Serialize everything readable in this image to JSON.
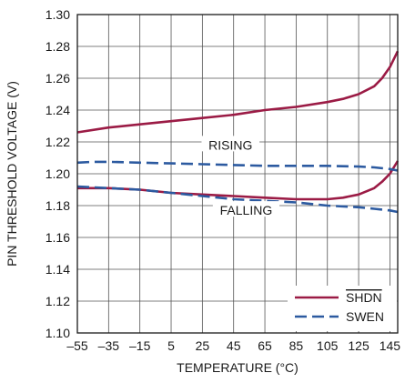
{
  "chart_data": {
    "type": "line",
    "xlabel": "TEMPERATURE (°C)",
    "ylabel": "PIN THRESHOLD VOLTAGE (V)",
    "xlim": [
      -55,
      150
    ],
    "ylim": [
      1.1,
      1.3
    ],
    "xticks": [
      -55,
      -35,
      -15,
      5,
      25,
      45,
      65,
      85,
      105,
      125,
      145
    ],
    "xtick_labels": [
      "–55",
      "–35",
      "–15",
      "5",
      "25",
      "45",
      "65",
      "85",
      "105",
      "125",
      "145"
    ],
    "yticks": [
      1.1,
      1.12,
      1.14,
      1.16,
      1.18,
      1.2,
      1.22,
      1.24,
      1.26,
      1.28,
      1.3
    ],
    "ytick_labels": [
      "1.10",
      "1.12",
      "1.14",
      "1.16",
      "1.18",
      "1.20",
      "1.22",
      "1.24",
      "1.26",
      "1.28",
      "1.30"
    ],
    "grid": true,
    "legend_position": "bottom-right",
    "series": [
      {
        "name": "SHDN",
        "name_overline": true,
        "color": "#9b1b45",
        "dash": "solid",
        "segments": [
          {
            "x": [
              -55,
              -35,
              -15,
              5,
              25,
              45,
              65,
              85,
              105,
              115,
              125,
              135,
              140,
              145,
              150
            ],
            "y": [
              1.226,
              1.229,
              1.231,
              1.233,
              1.235,
              1.237,
              1.24,
              1.242,
              1.245,
              1.247,
              1.25,
              1.255,
              1.26,
              1.267,
              1.277
            ]
          },
          {
            "x": [
              -55,
              -35,
              -15,
              5,
              25,
              45,
              65,
              85,
              105,
              115,
              125,
              135,
              140,
              145,
              150
            ],
            "y": [
              1.191,
              1.191,
              1.19,
              1.188,
              1.187,
              1.186,
              1.185,
              1.184,
              1.184,
              1.185,
              1.187,
              1.191,
              1.195,
              1.2,
              1.208
            ]
          }
        ]
      },
      {
        "name": "SWEN",
        "name_overline": false,
        "color": "#2c5aa0",
        "dash": "dashed",
        "segments": [
          {
            "x": [
              -55,
              -45,
              -35,
              -15,
              5,
              25,
              45,
              65,
              85,
              105,
              125,
              135,
              145,
              150
            ],
            "y": [
              1.207,
              1.2075,
              1.2075,
              1.207,
              1.2065,
              1.206,
              1.2055,
              1.205,
              1.205,
              1.205,
              1.2045,
              1.204,
              1.203,
              1.202
            ]
          },
          {
            "x": [
              -55,
              -35,
              -15,
              5,
              25,
              45,
              65,
              85,
              105,
              125,
              135,
              145,
              150
            ],
            "y": [
              1.192,
              1.191,
              1.19,
              1.188,
              1.186,
              1.184,
              1.183,
              1.182,
              1.18,
              1.179,
              1.178,
              1.177,
              1.176
            ]
          }
        ]
      }
    ],
    "annotations": [
      {
        "text": "RISING",
        "x": 43,
        "y": 1.2175
      },
      {
        "text": "FALLING",
        "x": 53,
        "y": 1.1765
      }
    ]
  }
}
